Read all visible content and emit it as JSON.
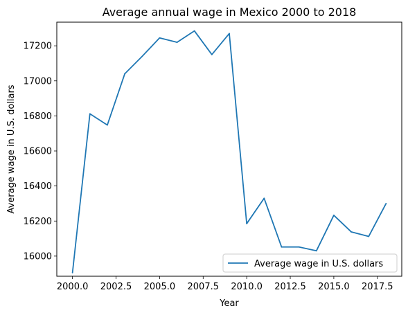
{
  "chart_data": {
    "type": "line",
    "title": "Average annual wage in Mexico 2000 to 2018",
    "xlabel": "Year",
    "ylabel": "Average wage in U.S. dollars",
    "x": [
      2000,
      2001,
      2002,
      2003,
      2004,
      2005,
      2006,
      2007,
      2008,
      2009,
      2010,
      2011,
      2012,
      2013,
      2014,
      2015,
      2016,
      2017,
      2018
    ],
    "series": [
      {
        "name": "Average wage in U.S. dollars",
        "values": [
          15905,
          16812,
          16748,
          17040,
          17140,
          17245,
          17220,
          17285,
          17150,
          17270,
          16185,
          16330,
          16052,
          16052,
          16030,
          16233,
          16138,
          16112,
          16300
        ]
      }
    ],
    "xlim": [
      1999.1,
      2018.9
    ],
    "ylim": [
      15885,
      17335
    ],
    "xticks": [
      2000.0,
      2002.5,
      2005.0,
      2007.5,
      2010.0,
      2012.5,
      2015.0,
      2017.5
    ],
    "xtick_labels": [
      "2000.0",
      "2002.5",
      "2005.0",
      "2007.5",
      "2010.0",
      "2012.5",
      "2015.0",
      "2017.5"
    ],
    "yticks": [
      16000,
      16200,
      16400,
      16600,
      16800,
      17000,
      17200
    ],
    "ytick_labels": [
      "16000",
      "16200",
      "16400",
      "16600",
      "16800",
      "17000",
      "17200"
    ],
    "grid": false,
    "legend_position": "lower-right",
    "colors": {
      "line": "#1f77b4",
      "axes": "#000000",
      "legend_border": "#cccccc"
    }
  }
}
